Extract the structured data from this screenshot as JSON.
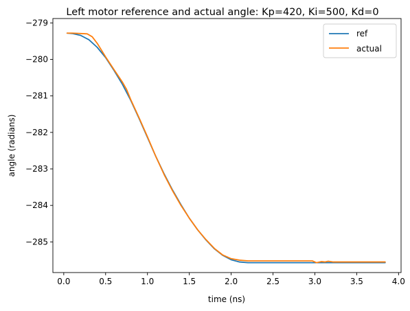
{
  "chart_data": {
    "type": "line",
    "title": "Left motor reference and actual angle: Kp=420, Ki=500, Kd=0",
    "xlabel": "time (ns)",
    "ylabel": "angle (radians)",
    "xlim": [
      -0.13,
      4.03
    ],
    "ylim": [
      -285.84,
      -278.88
    ],
    "x_ticks": [
      0.0,
      0.5,
      1.0,
      1.5,
      2.0,
      2.5,
      3.0,
      3.5,
      4.0
    ],
    "x_tick_labels": [
      "0.0",
      "0.5",
      "1.0",
      "1.5",
      "2.0",
      "2.5",
      "3.0",
      "3.5",
      "4.0"
    ],
    "y_ticks": [
      -279,
      -280,
      -281,
      -282,
      -283,
      -284,
      -285
    ],
    "y_tick_labels": [
      "−279",
      "−280",
      "−281",
      "−282",
      "−283",
      "−284",
      "−285"
    ],
    "grid": false,
    "legend": "top-right",
    "series": [
      {
        "name": "ref",
        "color": "#1f77b4",
        "points": [
          [
            0.04,
            -279.28
          ],
          [
            0.1,
            -279.29
          ],
          [
            0.2,
            -279.34
          ],
          [
            0.3,
            -279.46
          ],
          [
            0.4,
            -279.67
          ],
          [
            0.5,
            -279.95
          ],
          [
            0.6,
            -280.3
          ],
          [
            0.7,
            -280.68
          ],
          [
            0.8,
            -281.12
          ],
          [
            0.9,
            -281.62
          ],
          [
            1.0,
            -282.14
          ],
          [
            1.1,
            -282.66
          ],
          [
            1.2,
            -283.14
          ],
          [
            1.3,
            -283.58
          ],
          [
            1.4,
            -283.98
          ],
          [
            1.5,
            -284.35
          ],
          [
            1.6,
            -284.67
          ],
          [
            1.7,
            -284.95
          ],
          [
            1.8,
            -285.19
          ],
          [
            1.9,
            -285.37
          ],
          [
            2.0,
            -285.49
          ],
          [
            2.1,
            -285.55
          ],
          [
            2.2,
            -285.57
          ],
          [
            2.5,
            -285.57
          ],
          [
            3.0,
            -285.57
          ],
          [
            3.5,
            -285.57
          ],
          [
            3.84,
            -285.57
          ]
        ]
      },
      {
        "name": "actual",
        "color": "#ff7f0e",
        "points": [
          [
            0.04,
            -279.28
          ],
          [
            0.1,
            -279.28
          ],
          [
            0.2,
            -279.29
          ],
          [
            0.28,
            -279.3
          ],
          [
            0.34,
            -279.38
          ],
          [
            0.4,
            -279.56
          ],
          [
            0.5,
            -279.93
          ],
          [
            0.6,
            -280.28
          ],
          [
            0.7,
            -280.62
          ],
          [
            0.75,
            -280.82
          ],
          [
            0.8,
            -281.1
          ],
          [
            0.9,
            -281.6
          ],
          [
            1.0,
            -282.12
          ],
          [
            1.1,
            -282.66
          ],
          [
            1.2,
            -283.16
          ],
          [
            1.3,
            -283.6
          ],
          [
            1.4,
            -284.0
          ],
          [
            1.5,
            -284.35
          ],
          [
            1.6,
            -284.67
          ],
          [
            1.7,
            -284.94
          ],
          [
            1.8,
            -285.18
          ],
          [
            1.9,
            -285.36
          ],
          [
            2.0,
            -285.46
          ],
          [
            2.1,
            -285.5
          ],
          [
            2.2,
            -285.52
          ],
          [
            2.5,
            -285.52
          ],
          [
            2.97,
            -285.52
          ],
          [
            3.02,
            -285.57
          ],
          [
            3.08,
            -285.54
          ],
          [
            3.12,
            -285.55
          ],
          [
            3.16,
            -285.53
          ],
          [
            3.22,
            -285.55
          ],
          [
            3.5,
            -285.55
          ],
          [
            3.84,
            -285.55
          ]
        ]
      }
    ]
  }
}
